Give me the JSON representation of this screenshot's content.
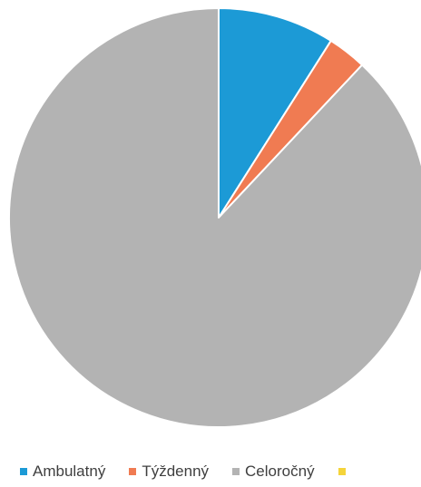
{
  "chart_data": {
    "type": "pie",
    "title": "",
    "start_angle_deg": 0,
    "direction": "clockwise",
    "slice_border_color": "#ffffff",
    "series": [
      {
        "name": "",
        "labels": [
          "Ambulatný",
          "Týždenný",
          "Celoročný",
          ""
        ],
        "values": [
          9,
          3,
          88,
          0
        ],
        "colors": [
          "#1c9ad6",
          "#f07b52",
          "#b3b3b3",
          "#f5d43a"
        ]
      }
    ],
    "legend": {
      "placement": "bottom",
      "entries": [
        {
          "label": "Ambulatný",
          "color": "#1c9ad6"
        },
        {
          "label": "Týždenný",
          "color": "#f07b52"
        },
        {
          "label": "Celoročný",
          "color": "#b3b3b3"
        },
        {
          "label": "",
          "color": "#f5d43a"
        }
      ]
    }
  }
}
